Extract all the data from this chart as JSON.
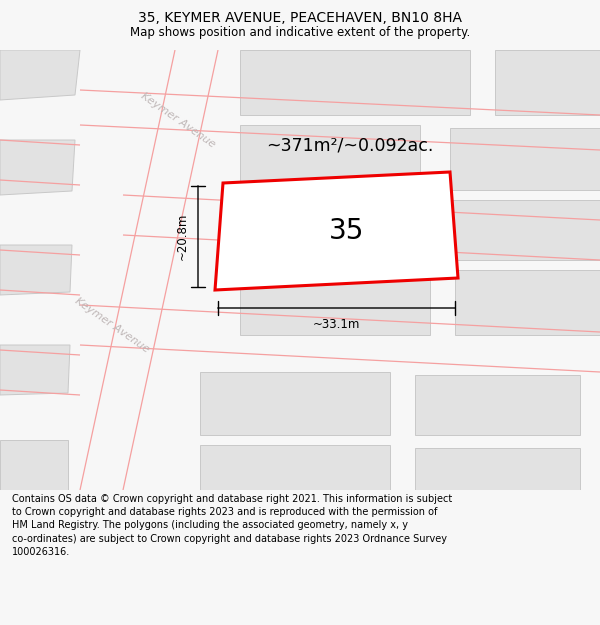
{
  "title": "35, KEYMER AVENUE, PEACEHAVEN, BN10 8HA",
  "subtitle": "Map shows position and indicative extent of the property.",
  "area_label": "~371m²/~0.092ac.",
  "plot_number": "35",
  "width_label": "~33.1m",
  "height_label": "~20.8m",
  "road_label_1": "Keymer Avenue",
  "road_label_2": "Keymer Avenue",
  "footer_line1": "Contains OS data © Crown copyright and database right 2021. This information is subject",
  "footer_line2": "to Crown copyright and database rights 2023 and is reproduced with the permission of",
  "footer_line3": "HM Land Registry. The polygons (including the associated geometry, namely x, y",
  "footer_line4": "co-ordinates) are subject to Crown copyright and database rights 2023 Ordnance Survey",
  "footer_line5": "100026316.",
  "bg_color": "#f7f7f7",
  "map_bg": "#ffffff",
  "block_color": "#e2e2e2",
  "road_line_color": "#f5a0a0",
  "plot_line_color": "#ee0000",
  "plot_fill_color": "#ffffff",
  "dim_line_color": "#000000",
  "title_color": "#000000",
  "footer_color": "#000000",
  "road_label_color": "#c0b8b8"
}
